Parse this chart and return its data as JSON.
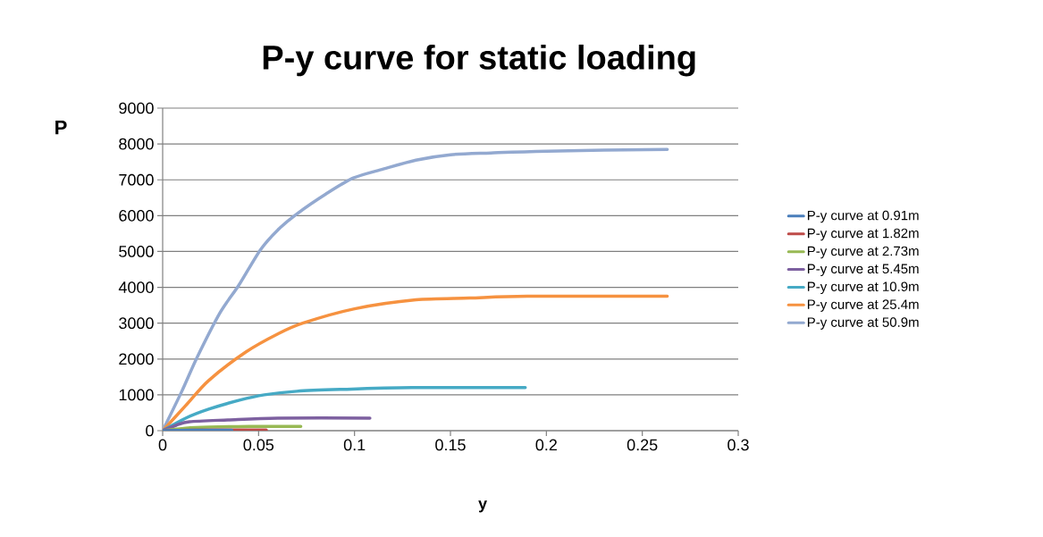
{
  "chart_data": {
    "type": "line",
    "title": "P-y curve for static loading",
    "xlabel": "y",
    "ylabel": "P",
    "xlim": [
      0,
      0.3
    ],
    "xticks": [
      0,
      0.05,
      0.1,
      0.15,
      0.2,
      0.25,
      0.3
    ],
    "ylim": [
      0,
      9000
    ],
    "yticks": [
      0,
      1000,
      2000,
      3000,
      4000,
      5000,
      6000,
      7000,
      8000,
      9000
    ],
    "grid": "y",
    "legend": "right",
    "marker": "none",
    "line_style": "solid",
    "series": [
      {
        "name": "P-y curve at 0.91m",
        "color": "#4a7ebb",
        "x": [
          0,
          0.015,
          0.036
        ],
        "values": [
          0,
          10,
          10
        ]
      },
      {
        "name": "P-y curve at 1.82m",
        "color": "#be4b48",
        "x": [
          0,
          0.015,
          0.03,
          0.054
        ],
        "values": [
          0,
          10,
          20,
          20
        ]
      },
      {
        "name": "P-y curve at 2.73m",
        "color": "#98b954",
        "x": [
          0,
          0.012,
          0.024,
          0.045,
          0.072
        ],
        "values": [
          0,
          70,
          100,
          120,
          120
        ]
      },
      {
        "name": "P-y curve at 5.45m",
        "color": "#7d60a0",
        "x": [
          0,
          0.007,
          0.014,
          0.034,
          0.06,
          0.108
        ],
        "values": [
          0,
          150,
          250,
          300,
          350,
          350
        ]
      },
      {
        "name": "P-y curve at 10.9m",
        "color": "#46aac5",
        "x": [
          0,
          0.012,
          0.024,
          0.04,
          0.053,
          0.07,
          0.0925,
          0.13,
          0.189
        ],
        "values": [
          0,
          350,
          600,
          850,
          1000,
          1100,
          1150,
          1200,
          1200
        ]
      },
      {
        "name": "P-y curve at 25.4m",
        "color": "#f69240",
        "x": [
          0,
          0.012,
          0.024,
          0.0435,
          0.06,
          0.073,
          0.1,
          0.132,
          0.16,
          0.19,
          0.263
        ],
        "values": [
          0,
          700,
          1400,
          2200,
          2700,
          3000,
          3400,
          3650,
          3700,
          3750,
          3750
        ]
      },
      {
        "name": "P-y curve at 50.9m",
        "color": "#93a9d0",
        "x": [
          0,
          0.01,
          0.018,
          0.03,
          0.0396,
          0.051,
          0.06,
          0.07,
          0.085,
          0.0994,
          0.115,
          0.132,
          0.15,
          0.171,
          0.2,
          0.263
        ],
        "values": [
          0,
          1100,
          2050,
          3300,
          4050,
          5050,
          5600,
          6050,
          6600,
          7050,
          7300,
          7550,
          7700,
          7750,
          7800,
          7850
        ]
      }
    ]
  }
}
